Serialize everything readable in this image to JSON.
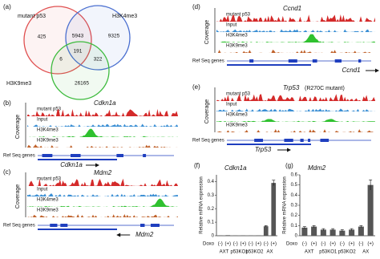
{
  "venn": {
    "label": "(a)",
    "sets": [
      "mutant p53",
      "H3K4me3",
      "H3K9me3"
    ],
    "counts": [
      425,
      5943,
      9325,
      191,
      6,
      322,
      26165
    ]
  },
  "tracks": [
    {
      "label": "(b)",
      "gene": "Cdkn1a",
      "tracks": [
        "mutant p53",
        "Input",
        "H3K4me3",
        "H3K9me3"
      ],
      "axis_label": "Coverage",
      "refseq_label": "Ref Seq genes"
    },
    {
      "label": "(c)",
      "gene": "Mdm2",
      "tracks": [
        "mutant p53",
        "Input",
        "H3K4me3",
        "H3K9me3"
      ],
      "axis_label": "Coverage",
      "refseq_label": "Ref Seq genes"
    },
    {
      "label": "(d)",
      "gene": "Ccnd1",
      "tracks": [
        "mutant p53",
        "Input",
        "H3K4me3",
        "H3K9me3"
      ],
      "axis_label": "Coverage",
      "refseq_label": "Ref Seq genes"
    },
    {
      "label": "(e)",
      "gene": "Trp53",
      "note": "(R270C mutant)",
      "tracks": [
        "mutant p53",
        "Input",
        "H3K4me3",
        "H3K9me3"
      ],
      "axis_label": "Coverage",
      "refseq_label": "Ref Seq genes"
    }
  ],
  "chart_data": [
    {
      "type": "bar",
      "panel_label": "(f)",
      "title": "Cdkn1a",
      "y_label": "Relative mRNA expression",
      "x_label": "Doxo",
      "categories": [
        "(-)",
        "(+)",
        "(-)",
        "(+)",
        "(-)",
        "(+)",
        "(-)",
        "(+)"
      ],
      "groups": [
        "AXT",
        "p53KO1",
        "p53KO2",
        "AX"
      ],
      "values": [
        0.003,
        0.004,
        0.002,
        0.003,
        0.002,
        0.003,
        0.07,
        0.39
      ],
      "errors": [
        null,
        null,
        null,
        null,
        null,
        null,
        0.005,
        0.02
      ],
      "color": "#555555",
      "ylim": [
        0,
        0.45
      ],
      "yticks": [
        0,
        0.1,
        0.2,
        0.3,
        0.4
      ]
    },
    {
      "type": "bar",
      "panel_label": "(g)",
      "title": "Mdm2",
      "y_label": "Relative mRNA expression",
      "x_label": "Doxo",
      "categories": [
        "(-)",
        "(+)",
        "(-)",
        "(+)",
        "(-)",
        "(+)",
        "(-)",
        "(+)"
      ],
      "groups": [
        "AXT",
        "p53KO1",
        "p53KO2",
        "AX"
      ],
      "values": [
        0.08,
        0.09,
        0.06,
        0.06,
        0.05,
        0.06,
        0.09,
        0.5
      ],
      "errors": [
        0.01,
        0.01,
        0.01,
        0.01,
        0.01,
        0.01,
        0.01,
        0.05
      ],
      "color": "#555555",
      "ylim": [
        0,
        0.6
      ],
      "yticks": [
        0,
        0.1,
        0.2,
        0.3,
        0.4,
        0.5,
        0.6
      ]
    }
  ]
}
